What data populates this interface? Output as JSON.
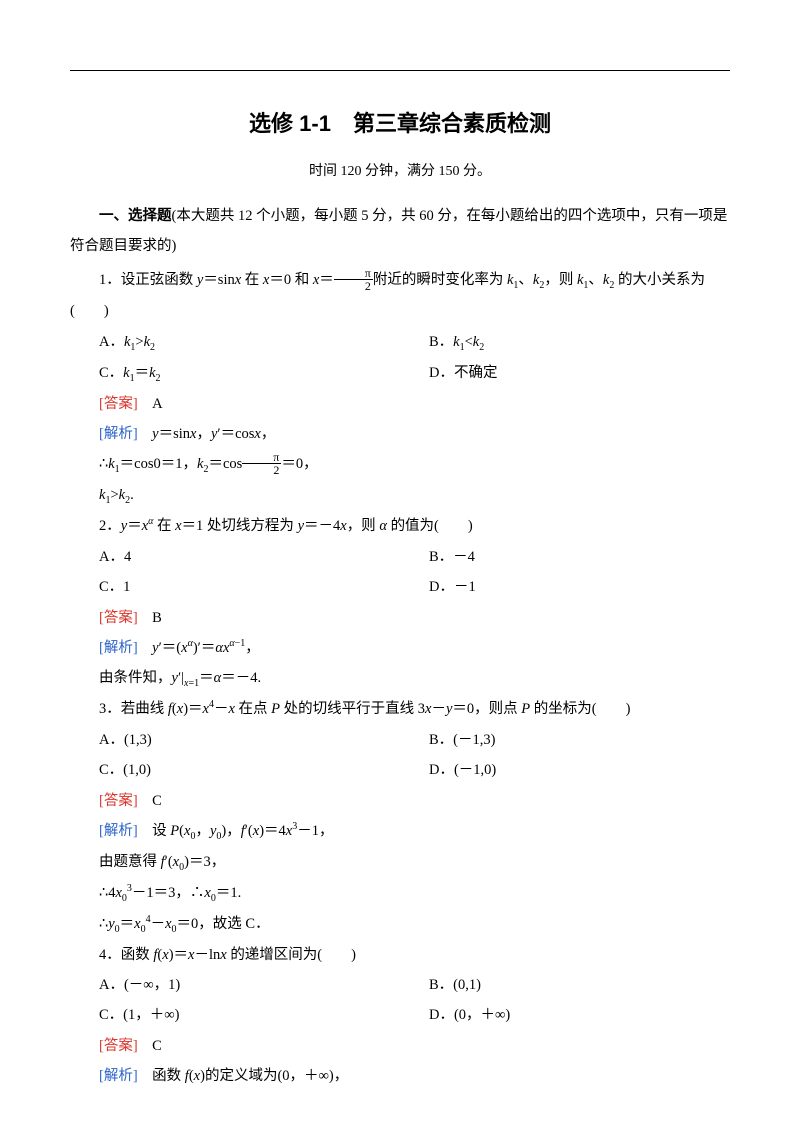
{
  "colors": {
    "text": "#000000",
    "answer": "#d9362b",
    "analysis": "#2b63c9",
    "bg": "#ffffff"
  },
  "typography": {
    "body_font": "SimSun",
    "title_font": "SimHei",
    "body_size_pt": 11,
    "title_size_pt": 16,
    "line_height": 2.1
  },
  "title": "选修 1-1　第三章综合素质检测",
  "subtitle": "时间 120 分钟，满分 150 分。",
  "section": {
    "label_prefix": "一、选择题",
    "label_rest": "(本大题共 12 个小题，每小题 5 分，共 60 分，在每小题给出的四个选项中，只有一项是符合题目要求的)"
  },
  "labels": {
    "answer": "[答案]",
    "analysis": "[解析]"
  },
  "q1": {
    "stem_a": "1．设正弦函数 ",
    "stem_b": " 在 ",
    "stem_c": " 和 ",
    "stem_d": "附近的瞬时变化率为 ",
    "stem_e": "，则 ",
    "stem_f": " 的大小关系为(　　)",
    "A_pre": "A．",
    "B_pre": "B．",
    "C_pre": "C．",
    "D": "D．不确定",
    "answer": "A",
    "ana_a": "，",
    "ana_b": "，",
    "ana_c": "∴",
    "ana_d": "，",
    "ana_e": "，",
    "k1gtk2": "."
  },
  "q2": {
    "stem_a": "2．",
    "stem_b": " 在 ",
    "stem_c": " 处切线方程为 ",
    "stem_d": "，则 ",
    "stem_e": " 的值为(　　)",
    "A": "A．4",
    "B": "B．－4",
    "C": "C．1",
    "D": "D．－1",
    "answer": "B",
    "ana_a": "，",
    "ana_b": "由条件知，"
  },
  "q3": {
    "stem_a": "3．若曲线 ",
    "stem_b": " 在点 ",
    "stem_c": " 处的切线平行于直线 ",
    "stem_d": "，则点 ",
    "stem_e": " 的坐标为(　　)",
    "A": "A．(1,3)",
    "B": "B．(－1,3)",
    "C": "C．(1,0)",
    "D": "D．(－1,0)",
    "answer": "C",
    "ana_a": "设 ",
    "ana_b": "，",
    "ana_c": "，",
    "ana_d": "由题意得 ",
    "ana_e": "，",
    "ana_f": "∴",
    "ana_g": "，∴",
    "ana_h": "∴",
    "ana_i": "，故选 C．"
  },
  "q4": {
    "stem_a": "4．函数 ",
    "stem_b": " 的递增区间为(　　)",
    "A": "A．(－∞，1)",
    "B": "B．(0,1)",
    "C": "C．(1，＋∞)",
    "D": "D．(0，＋∞)",
    "answer": "C",
    "ana_a": "函数 ",
    "ana_b": "的定义域为(0，＋∞)，"
  }
}
